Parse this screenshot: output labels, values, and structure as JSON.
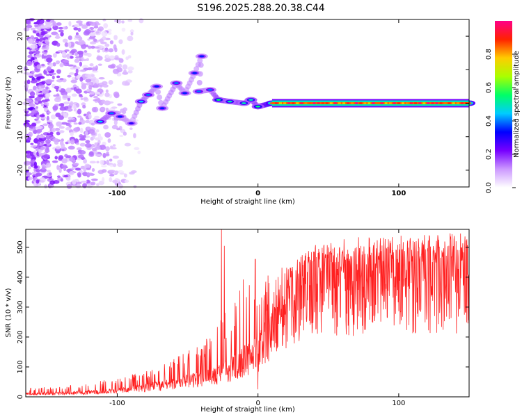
{
  "figure_title": "S196.2025.288.20.38.C44",
  "chart_data": [
    {
      "type": "heatmap",
      "xlabel": "Height of straight line (km)",
      "ylabel": "Frequency (Hz)",
      "xlim": [
        -165,
        150
      ],
      "ylim": [
        -25,
        25
      ],
      "x_ticks": [
        "-100",
        "0",
        "100"
      ],
      "y_ticks": [
        "20",
        "10",
        "0",
        "-10",
        "-20"
      ],
      "colorbar": {
        "label": "Normalized spectral amplitude",
        "range": [
          0,
          1
        ],
        "ticks": [
          "0.0",
          "0.2",
          "0.4",
          "0.6",
          "0.8"
        ],
        "colors": [
          "#ffffff",
          "#cc99ff",
          "#7700ff",
          "#0000ff",
          "#00ccff",
          "#00ff66",
          "#aaff00",
          "#ffcc00",
          "#ff2200",
          "#ff0088"
        ]
      },
      "noise_region": {
        "x_range": [
          -165,
          -80
        ],
        "amplitude": 0.25
      },
      "ridge": [
        {
          "x": -112,
          "f": -5.5,
          "amp": 0.45
        },
        {
          "x": -104,
          "f": -3.0,
          "amp": 0.4
        },
        {
          "x": -98,
          "f": -4.0,
          "amp": 0.35
        },
        {
          "x": -90,
          "f": -6.0,
          "amp": 0.3
        },
        {
          "x": -83,
          "f": 0.5,
          "amp": 0.45
        },
        {
          "x": -78,
          "f": 2.5,
          "amp": 0.4
        },
        {
          "x": -72,
          "f": 5.0,
          "amp": 0.35
        },
        {
          "x": -68,
          "f": -1.5,
          "amp": 0.35
        },
        {
          "x": -58,
          "f": 6.0,
          "amp": 0.4
        },
        {
          "x": -52,
          "f": 3.0,
          "amp": 0.35
        },
        {
          "x": -45,
          "f": 9.0,
          "amp": 0.35
        },
        {
          "x": -40,
          "f": 14.0,
          "amp": 0.35
        },
        {
          "x": -42,
          "f": 3.5,
          "amp": 0.4
        },
        {
          "x": -34,
          "f": 4.0,
          "amp": 0.4
        },
        {
          "x": -28,
          "f": 1.0,
          "amp": 0.55
        },
        {
          "x": -20,
          "f": 0.5,
          "amp": 0.5
        },
        {
          "x": -10,
          "f": 0.0,
          "amp": 0.5
        },
        {
          "x": -5,
          "f": 1.0,
          "amp": 0.5
        },
        {
          "x": 0,
          "f": -1.0,
          "amp": 0.55
        },
        {
          "x": 10,
          "f": 0.0,
          "amp": 0.85
        },
        {
          "x": 60,
          "f": 0.0,
          "amp": 0.95
        },
        {
          "x": 100,
          "f": 0.0,
          "amp": 0.9
        },
        {
          "x": 150,
          "f": 0.0,
          "amp": 0.85
        }
      ]
    },
    {
      "type": "line",
      "xlabel": "Height of straight line (km)",
      "ylabel": "SNR (10 * v/v)",
      "xlim": [
        -165,
        150
      ],
      "ylim": [
        0,
        560
      ],
      "x_ticks": [
        "-100",
        "0",
        "100"
      ],
      "y_ticks": [
        "0",
        "100",
        "200",
        "300",
        "400",
        "500"
      ],
      "color": "#ff2020",
      "envelope": {
        "x": [
          -165,
          -140,
          -120,
          -100,
          -80,
          -60,
          -40,
          -30,
          -20,
          -10,
          0,
          5,
          10,
          20,
          30,
          40,
          50,
          60,
          80,
          100,
          120,
          150
        ],
        "base": [
          10,
          12,
          15,
          20,
          30,
          45,
          60,
          70,
          90,
          120,
          150,
          190,
          230,
          290,
          330,
          350,
          360,
          365,
          370,
          375,
          375,
          380
        ],
        "peak": [
          30,
          35,
          50,
          60,
          90,
          130,
          180,
          250,
          300,
          400,
          460,
          400,
          430,
          440,
          470,
          500,
          510,
          500,
          510,
          520,
          530,
          530
        ]
      },
      "spikes": [
        {
          "x": -26,
          "y": 560
        },
        {
          "x": -24,
          "y": 505
        },
        {
          "x": -2,
          "y": 460
        },
        {
          "x": 0,
          "y": 25
        }
      ]
    }
  ]
}
